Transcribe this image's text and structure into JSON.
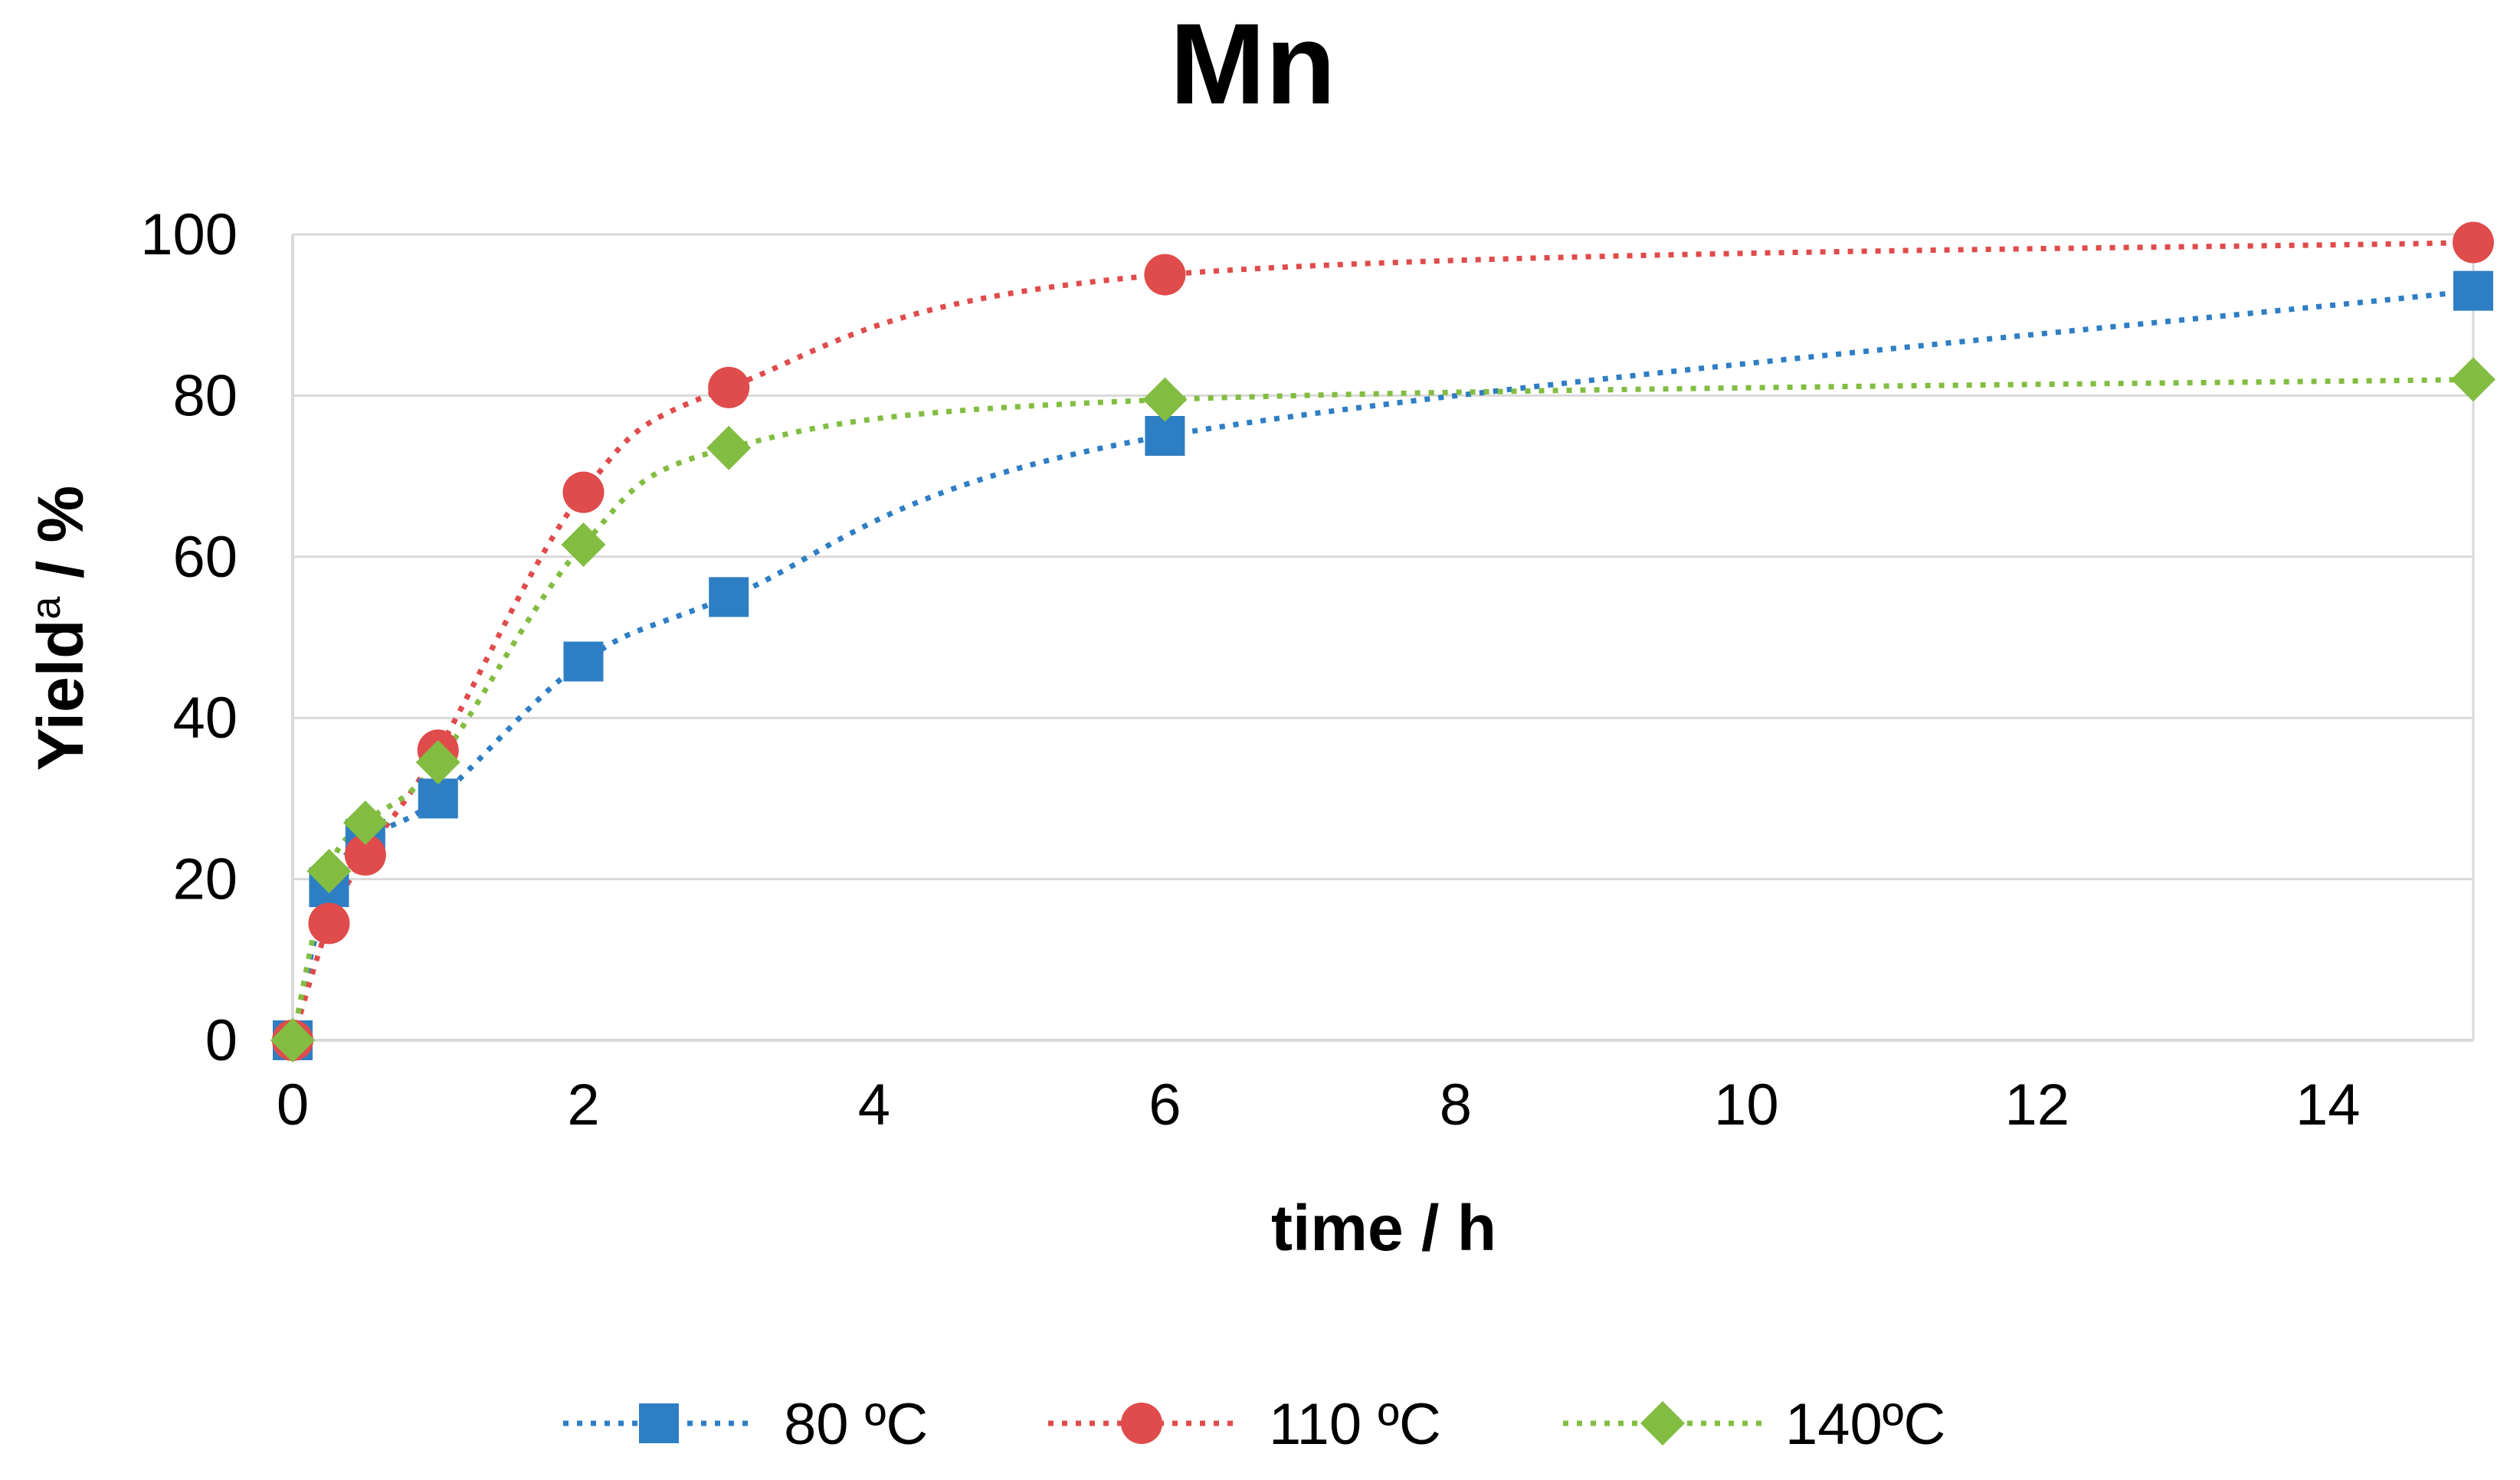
{
  "chart_data": {
    "type": "scatter",
    "title": "Mn",
    "xlabel": "time / h",
    "ylabel_main": "Yield",
    "ylabel_sup": "a",
    "ylabel_rest": " / %",
    "xlim": [
      0,
      15
    ],
    "ylim": [
      0,
      100
    ],
    "xticks": [
      0,
      2,
      4,
      6,
      8,
      10,
      12,
      14
    ],
    "yticks": [
      0,
      20,
      40,
      60,
      80,
      100
    ],
    "xtick_labels": [
      "0",
      "2",
      "4",
      "6",
      "8",
      "10",
      "12",
      "14"
    ],
    "ytick_labels": [
      "0",
      "20",
      "40",
      "60",
      "80",
      "100"
    ],
    "grid": "horizontal",
    "line_style": "dotted smoothed",
    "legend_position": "bottom",
    "series": [
      {
        "name": "80 ºC",
        "marker": "square",
        "color": "#2E7EC4",
        "x": [
          0,
          0.25,
          0.5,
          1,
          2,
          3,
          6,
          15
        ],
        "y": [
          0,
          19,
          25,
          30,
          47,
          55,
          75,
          93
        ]
      },
      {
        "name": "110 ºC",
        "marker": "circle",
        "color": "#E04B4B",
        "x": [
          0,
          0.25,
          0.5,
          1,
          2,
          3,
          6,
          15
        ],
        "y": [
          0,
          14.5,
          23,
          36,
          68,
          81,
          95,
          99
        ]
      },
      {
        "name": "140ºC",
        "marker": "diamond",
        "color": "#82BD42",
        "x": [
          0,
          0.25,
          0.5,
          1,
          2,
          3,
          6,
          15
        ],
        "y": [
          0,
          21,
          27,
          34.5,
          61.5,
          73.5,
          79.5,
          82
        ]
      }
    ]
  }
}
